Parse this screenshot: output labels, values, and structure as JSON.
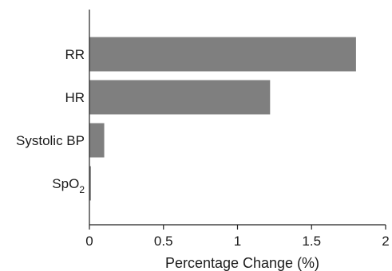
{
  "chart_data": {
    "type": "bar",
    "orientation": "horizontal",
    "categories": [
      "RR",
      "HR",
      "Systolic BP",
      "SpO2"
    ],
    "category_label_parts": [
      {
        "base": "RR",
        "sub": ""
      },
      {
        "base": "HR",
        "sub": ""
      },
      {
        "base": "Systolic BP",
        "sub": ""
      },
      {
        "base": "SpO",
        "sub": "2"
      }
    ],
    "values": [
      1.8,
      1.22,
      0.1,
      0.01
    ],
    "title": "",
    "xlabel": "Percentage Change (%)",
    "ylabel": "",
    "xlim": [
      0,
      2
    ],
    "xticks": [
      0,
      0.5,
      1,
      1.5,
      2
    ],
    "xtick_labels": [
      "0",
      "0.5",
      "1",
      "1.5",
      "2"
    ],
    "grid": false,
    "legend": "none",
    "bar_color": "#7f7f7f"
  }
}
